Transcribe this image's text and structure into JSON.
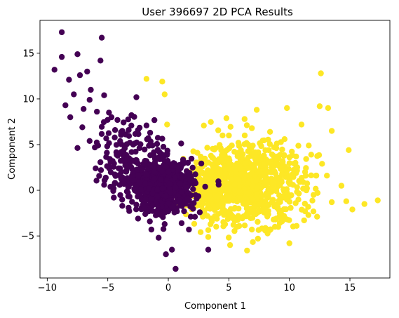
{
  "chart_data": {
    "type": "scatter",
    "title": "User 396697 2D PCA Results",
    "xlabel": "Component 1",
    "ylabel": "Component 2",
    "xlim": [
      -10.6,
      18.3
    ],
    "ylim": [
      -9.6,
      18.6
    ],
    "xticks": [
      -10,
      -5,
      0,
      5,
      10,
      15
    ],
    "yticks": [
      -5,
      0,
      5,
      10,
      15
    ],
    "xtick_labels": [
      "−10",
      "−5",
      "0",
      "5",
      "10",
      "15"
    ],
    "ytick_labels": [
      "−5",
      "0",
      "5",
      "10",
      "15"
    ],
    "grid": false,
    "legend": "none",
    "series": [
      {
        "color": "#440154",
        "points": [
          [
            -8.8,
            17.3
          ],
          [
            -9.4,
            13.2
          ],
          [
            -8.8,
            14.6
          ],
          [
            -7.5,
            14.9
          ],
          [
            -6.7,
            13.0
          ],
          [
            -5.5,
            16.7
          ],
          [
            -5.6,
            14.2
          ],
          [
            -8.2,
            12.1
          ],
          [
            -7.3,
            12.6
          ],
          [
            -6.4,
            11.0
          ],
          [
            -7.8,
            10.5
          ],
          [
            -6.5,
            9.9
          ],
          [
            -5.3,
            10.4
          ],
          [
            -8.5,
            9.3
          ],
          [
            -7.0,
            8.9
          ],
          [
            -5.9,
            8.6
          ],
          [
            -4.9,
            8.5
          ],
          [
            -4.2,
            7.7
          ],
          [
            -3.8,
            6.5
          ],
          [
            -2.9,
            5.0
          ],
          [
            -1.8,
            7.1
          ],
          [
            -1.5,
            6.3
          ],
          [
            -0.7,
            3.4
          ],
          [
            -6.0,
            2.4
          ],
          [
            -5.3,
            0.6
          ],
          [
            -4.5,
            -0.8
          ],
          [
            -3.8,
            -1.7
          ],
          [
            -3.2,
            -0.7
          ],
          [
            -2.5,
            -3.1
          ],
          [
            -1.9,
            -2.6
          ],
          [
            -1.4,
            -4.3
          ],
          [
            -0.8,
            -5.2
          ],
          [
            -0.3,
            -3.7
          ],
          [
            0.3,
            -6.5
          ],
          [
            0.6,
            -8.6
          ],
          [
            -0.2,
            -7.0
          ],
          [
            1.1,
            -3.6
          ],
          [
            1.7,
            -4.3
          ],
          [
            2.2,
            -2.9
          ],
          [
            3.3,
            -6.5
          ],
          [
            -8.1,
            8.0
          ],
          [
            -7.1,
            6.9
          ],
          [
            -6.5,
            5.4
          ],
          [
            -5.8,
            4.9
          ],
          [
            -4.6,
            3.2
          ],
          [
            -4.1,
            2.4
          ],
          [
            -3.6,
            4.6
          ],
          [
            -2.7,
            3.1
          ],
          [
            -2.2,
            2.3
          ],
          [
            -1.8,
            1.7
          ],
          [
            -1.2,
            2.6
          ],
          [
            -0.6,
            1.2
          ],
          [
            0.1,
            0.7
          ],
          [
            0.6,
            0.3
          ],
          [
            1.1,
            -0.2
          ],
          [
            1.6,
            -0.9
          ],
          [
            2.1,
            -1.4
          ],
          [
            -0.2,
            -0.6
          ],
          [
            -1.0,
            -1.3
          ],
          [
            -1.6,
            0.2
          ],
          [
            -2.4,
            0.9
          ],
          [
            -3.0,
            1.6
          ],
          [
            0.4,
            -1.8
          ],
          [
            1.3,
            -2.3
          ],
          [
            0.9,
            -1.1
          ],
          [
            -0.5,
            0.2
          ],
          [
            -1.3,
            -0.3
          ],
          [
            -2.0,
            -1.9
          ],
          [
            0.0,
            2.0
          ],
          [
            -0.9,
            3.5
          ]
        ]
      },
      {
        "color": "#fde725",
        "points": [
          [
            -1.8,
            12.2
          ],
          [
            -0.5,
            11.9
          ],
          [
            -0.3,
            10.5
          ],
          [
            12.6,
            12.8
          ],
          [
            7.3,
            8.8
          ],
          [
            9.8,
            9.0
          ],
          [
            12.5,
            9.2
          ],
          [
            13.2,
            9.0
          ],
          [
            11.0,
            7.2
          ],
          [
            13.5,
            6.5
          ],
          [
            14.9,
            4.4
          ],
          [
            11.8,
            3.9
          ],
          [
            12.7,
            2.9
          ],
          [
            13.1,
            1.6
          ],
          [
            14.3,
            0.5
          ],
          [
            14.7,
            -1.2
          ],
          [
            15.2,
            -2.1
          ],
          [
            16.2,
            -1.5
          ],
          [
            17.3,
            -1.1
          ],
          [
            13.5,
            -1.3
          ],
          [
            12.0,
            -0.5
          ],
          [
            11.3,
            -2.3
          ],
          [
            10.6,
            -3.9
          ],
          [
            10.0,
            -5.8
          ],
          [
            8.0,
            -4.4
          ],
          [
            7.4,
            -5.3
          ],
          [
            6.9,
            -4.3
          ],
          [
            5.1,
            -6.0
          ],
          [
            3.6,
            -3.4
          ],
          [
            4.6,
            -2.7
          ],
          [
            5.8,
            -2.0
          ],
          [
            3.0,
            2.8
          ],
          [
            3.9,
            4.6
          ],
          [
            5.0,
            6.0
          ],
          [
            6.3,
            7.8
          ],
          [
            6.9,
            6.8
          ],
          [
            8.4,
            6.4
          ],
          [
            9.6,
            5.6
          ],
          [
            4.2,
            1.3
          ],
          [
            5.6,
            2.0
          ],
          [
            6.6,
            0.8
          ],
          [
            7.7,
            1.6
          ],
          [
            8.6,
            0.2
          ],
          [
            9.4,
            1.8
          ],
          [
            10.3,
            0.6
          ],
          [
            11.4,
            0.0
          ],
          [
            5.0,
            -0.8
          ],
          [
            6.2,
            -1.1
          ],
          [
            7.3,
            -0.4
          ],
          [
            8.3,
            -1.6
          ],
          [
            9.2,
            -2.5
          ],
          [
            3.4,
            -0.6
          ],
          [
            2.6,
            0.7
          ],
          [
            4.4,
            3.3
          ],
          [
            7.9,
            3.8
          ],
          [
            9.0,
            3.4
          ],
          [
            10.5,
            3.0
          ],
          [
            6.0,
            4.4
          ],
          [
            1.9,
            -0.4
          ],
          [
            3.1,
            1.5
          ],
          [
            11.6,
            4.9
          ],
          [
            12.2,
            1.6
          ],
          [
            2.4,
            4.1
          ],
          [
            4.8,
            7.9
          ],
          [
            -0.1,
            7.2
          ]
        ]
      }
    ],
    "clusters": [
      {
        "series": 0,
        "cx": -0.5,
        "cy": 0.5,
        "sx": 1.3,
        "sy": 1.4,
        "n": 640
      },
      {
        "series": 0,
        "cx": -3.2,
        "cy": 4.0,
        "sx": 1.4,
        "sy": 2.4,
        "n": 130
      },
      {
        "series": 1,
        "cx": 6.5,
        "cy": 0.8,
        "sx": 2.4,
        "sy": 2.2,
        "n": 720
      },
      {
        "series": 1,
        "cx": 3.6,
        "cy": 0.2,
        "sx": 0.9,
        "sy": 1.6,
        "n": 160
      }
    ]
  }
}
